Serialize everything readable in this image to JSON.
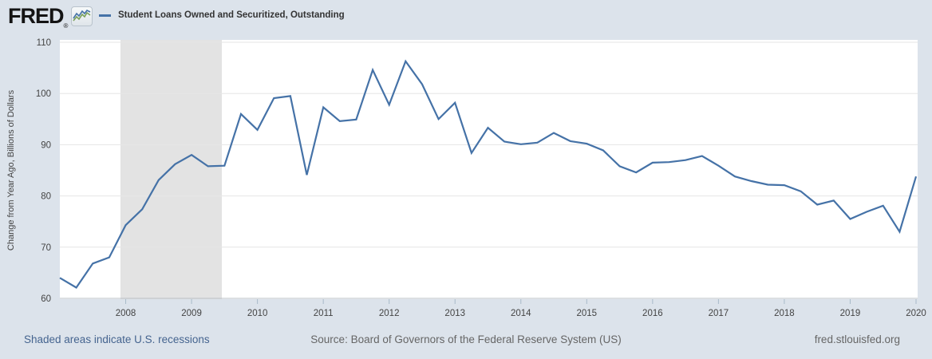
{
  "header": {
    "logo_text": "FRED",
    "logo_registered": "®",
    "legend": {
      "label": "Student Loans Owned and Securitized, Outstanding",
      "line_color": "#4572a7"
    }
  },
  "footer": {
    "recession_note": "Shaded areas indicate U.S. recessions",
    "source": "Source: Board of Governors of the Federal Reserve System (US)",
    "site": "fred.stlouisfed.org"
  },
  "chart_data": {
    "type": "line",
    "title": "Student Loans Owned and Securitized, Outstanding",
    "xlabel": "",
    "ylabel": "Change from Year Ago, Billions of Dollars",
    "frequency": "quarterly",
    "xlim": [
      2007.0,
      2020.0
    ],
    "ylim": [
      60,
      110
    ],
    "yticks": [
      60,
      70,
      80,
      90,
      100,
      110
    ],
    "xticks": [
      2008,
      2009,
      2010,
      2011,
      2012,
      2013,
      2014,
      2015,
      2016,
      2017,
      2018,
      2019,
      2020
    ],
    "grid": true,
    "legend_position": "top-header",
    "line_color": "#4572a7",
    "recession_color": "#e3e3e3",
    "recessions": [
      {
        "start": 2007.92,
        "end": 2009.46
      }
    ],
    "x": [
      2007.0,
      2007.25,
      2007.5,
      2007.75,
      2008.0,
      2008.25,
      2008.5,
      2008.75,
      2009.0,
      2009.25,
      2009.5,
      2009.75,
      2010.0,
      2010.25,
      2010.5,
      2010.75,
      2011.0,
      2011.25,
      2011.5,
      2011.75,
      2012.0,
      2012.25,
      2012.5,
      2012.75,
      2013.0,
      2013.25,
      2013.5,
      2013.75,
      2014.0,
      2014.25,
      2014.5,
      2014.75,
      2015.0,
      2015.25,
      2015.5,
      2015.75,
      2016.0,
      2016.25,
      2016.5,
      2016.75,
      2017.0,
      2017.25,
      2017.5,
      2017.75,
      2018.0,
      2018.25,
      2018.5,
      2018.75,
      2019.0,
      2019.25,
      2019.5,
      2019.75,
      2020.0
    ],
    "values": [
      64.0,
      62.1,
      66.8,
      68.0,
      74.3,
      77.4,
      83.1,
      86.2,
      88.0,
      85.8,
      85.9,
      96.0,
      92.9,
      99.1,
      99.5,
      84.1,
      97.3,
      94.6,
      94.9,
      104.6,
      97.8,
      106.3,
      101.8,
      95.0,
      98.2,
      88.4,
      93.3,
      90.6,
      90.1,
      90.4,
      92.3,
      90.7,
      90.2,
      88.9,
      85.8,
      84.6,
      86.5,
      86.6,
      87.0,
      87.8,
      85.9,
      83.8,
      82.9,
      82.2,
      82.1,
      80.9,
      78.3,
      79.1,
      75.5,
      76.9,
      78.1,
      73.0,
      83.8
    ]
  }
}
